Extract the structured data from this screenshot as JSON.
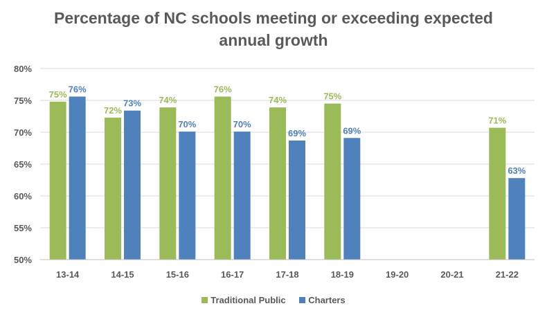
{
  "chart_data": {
    "type": "bar",
    "title_lines": [
      "Percentage of NC schools meeting or exceeding expected",
      "annual growth"
    ],
    "categories": [
      "13-14",
      "14-15",
      "15-16",
      "16-17",
      "17-18",
      "18-19",
      "19-20",
      "20-21",
      "21-22"
    ],
    "series": [
      {
        "name": "Traditional Public",
        "color": "#9BBB59",
        "values": [
          74.8,
          72.3,
          73.9,
          75.6,
          73.9,
          74.5,
          null,
          null,
          70.7
        ],
        "labels": [
          "75%",
          "72%",
          "74%",
          "76%",
          "74%",
          "75%",
          "",
          "",
          "71%"
        ]
      },
      {
        "name": "Charters",
        "color": "#4F81BD",
        "values": [
          75.6,
          73.4,
          70.1,
          70.1,
          68.7,
          69.1,
          null,
          null,
          62.8
        ],
        "labels": [
          "76%",
          "73%",
          "70%",
          "70%",
          "69%",
          "69%",
          "",
          "",
          "63%"
        ]
      }
    ],
    "ylim": [
      50,
      80
    ],
    "ytick_values": [
      50,
      55,
      60,
      65,
      70,
      75,
      80
    ],
    "ytick_labels": [
      "50%",
      "55%",
      "60%",
      "65%",
      "70%",
      "75%",
      "80%"
    ],
    "grid": true,
    "legend_position": "bottom",
    "xlabel": "",
    "ylabel": ""
  }
}
